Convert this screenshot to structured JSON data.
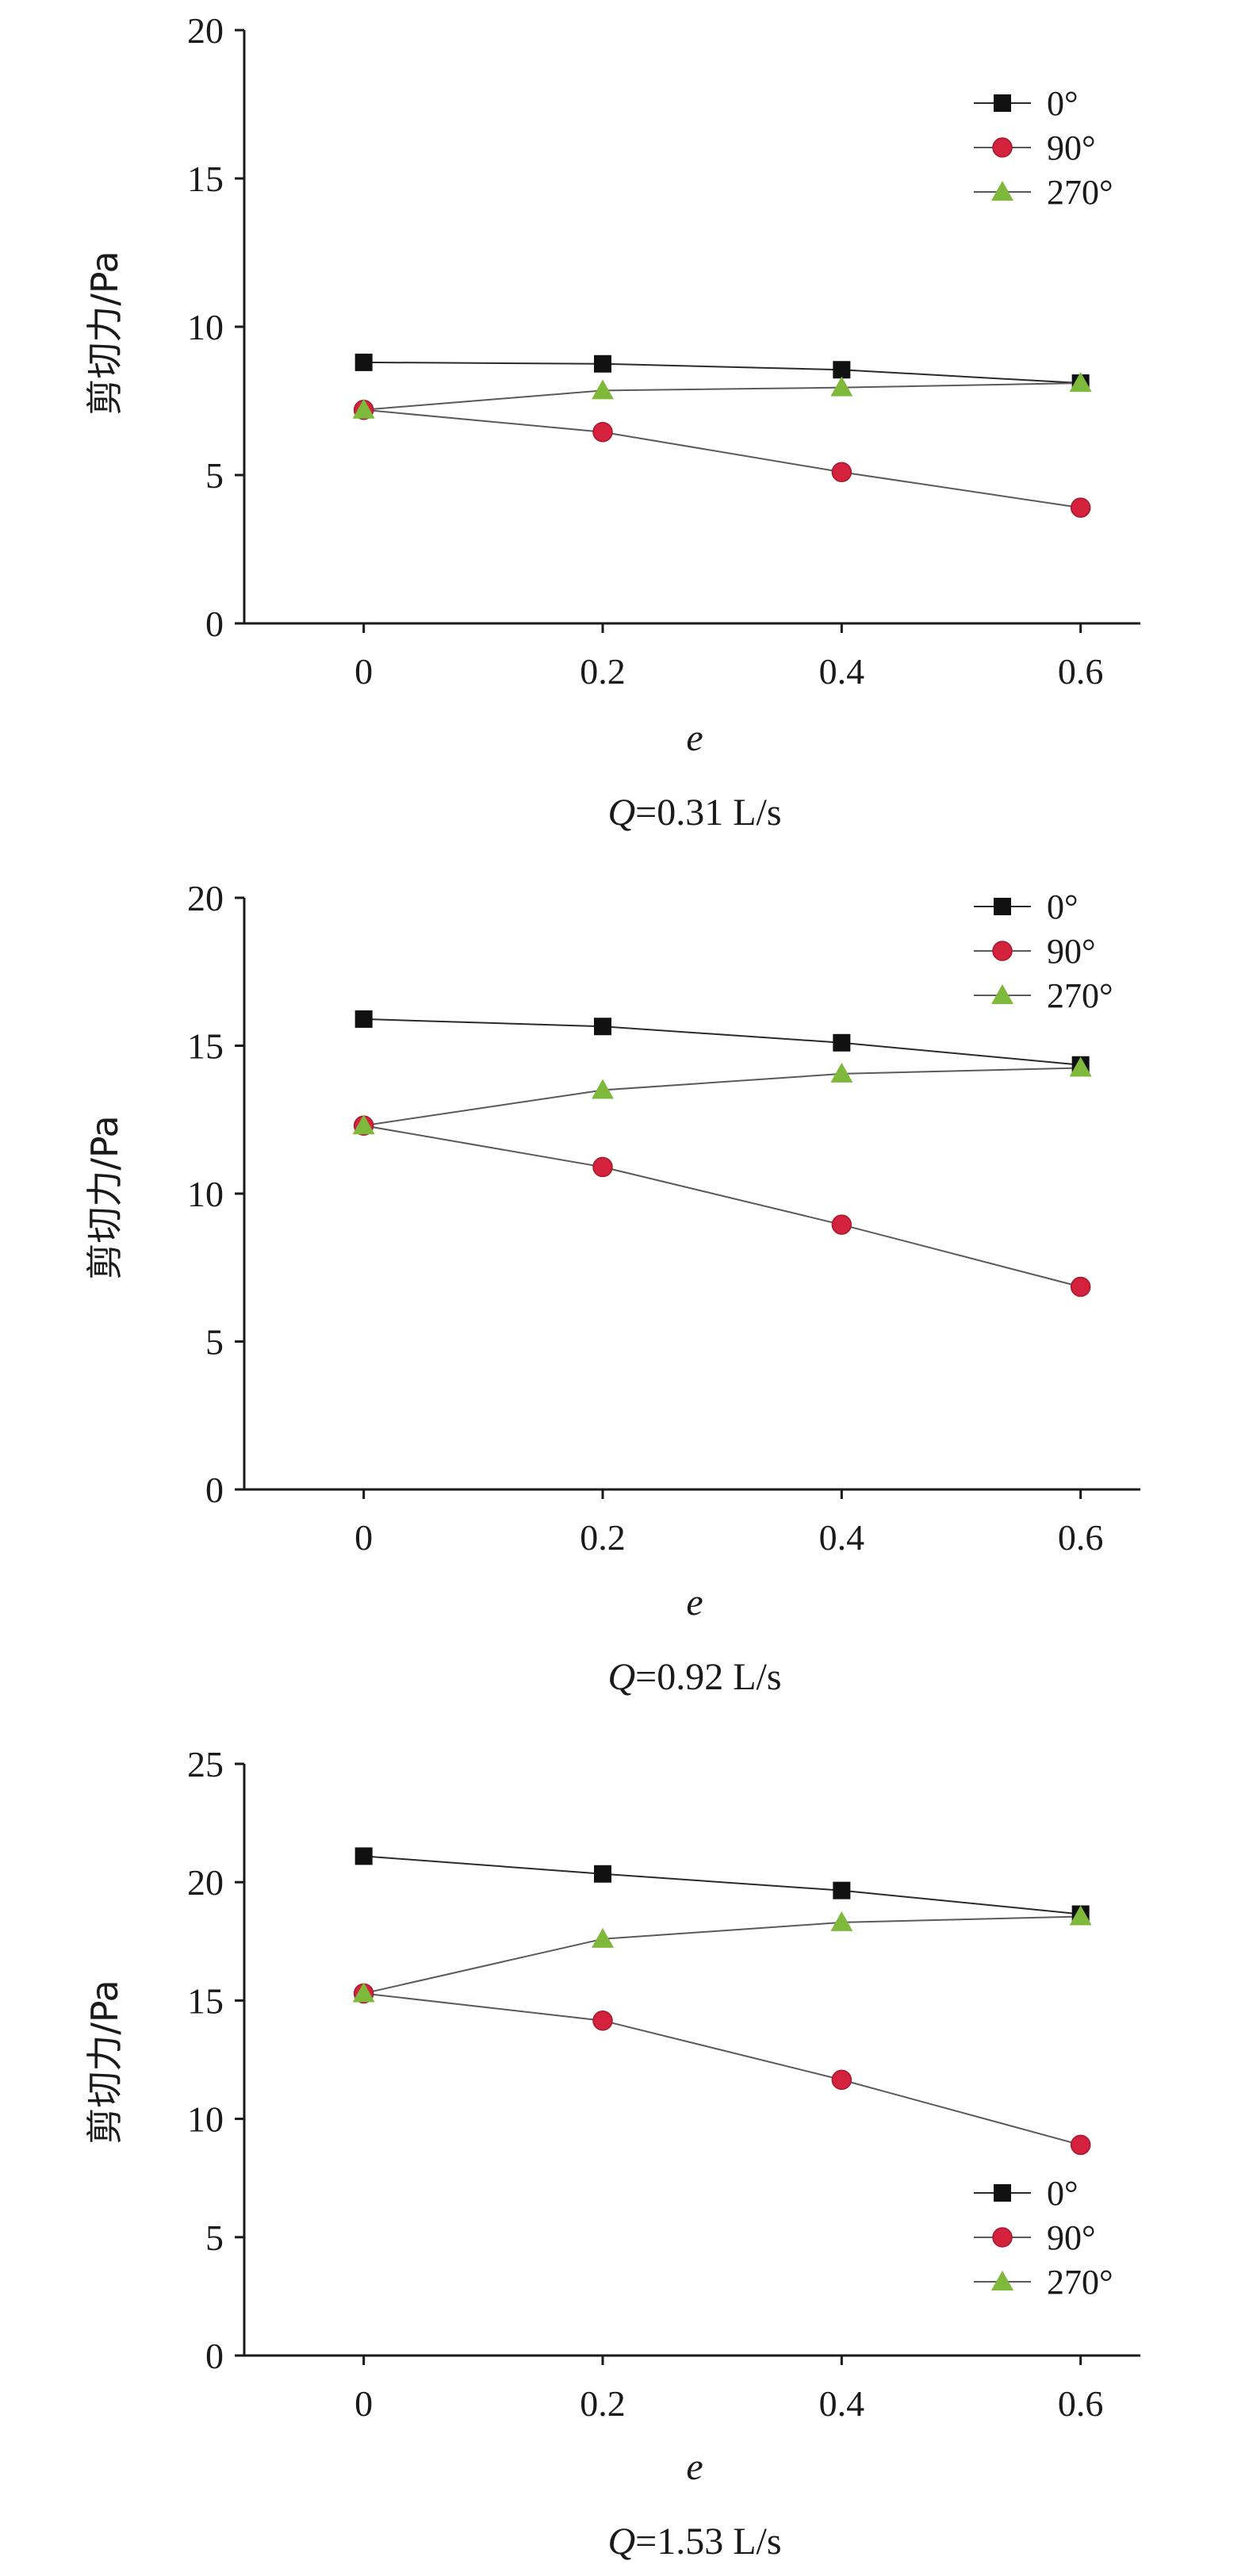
{
  "chart_data": [
    {
      "type": "line",
      "caption": {
        "symbol": "Q",
        "text": "=0.31 L/s"
      },
      "xlabel": "e",
      "ylabel": "剪切力/Pa",
      "x": [
        0,
        0.2,
        0.4,
        0.6
      ],
      "xticks": [
        "0",
        "0.2",
        "0.4",
        "0.6"
      ],
      "ylim": [
        0,
        20
      ],
      "yticks": [
        0,
        5,
        10,
        15,
        20
      ],
      "legend_position": "top-right",
      "series": [
        {
          "name": "0°",
          "marker": "square",
          "color": "#111111",
          "values": [
            8.8,
            8.75,
            8.55,
            8.1
          ]
        },
        {
          "name": "90°",
          "marker": "circle",
          "color": "#d4213d",
          "values": [
            7.2,
            6.45,
            5.1,
            3.9
          ]
        },
        {
          "name": "270°",
          "marker": "triangle",
          "color": "#7fb93b",
          "values": [
            7.2,
            7.85,
            7.95,
            8.1
          ]
        }
      ]
    },
    {
      "type": "line",
      "caption": {
        "symbol": "Q",
        "text": "=0.92 L/s"
      },
      "xlabel": "e",
      "ylabel": "剪切力/Pa",
      "x": [
        0,
        0.2,
        0.4,
        0.6
      ],
      "xticks": [
        "0",
        "0.2",
        "0.4",
        "0.6"
      ],
      "ylim": [
        0,
        20
      ],
      "yticks": [
        0,
        5,
        10,
        15,
        20
      ],
      "legend_position": "top-right",
      "series": [
        {
          "name": "0°",
          "marker": "square",
          "color": "#111111",
          "values": [
            15.9,
            15.65,
            15.1,
            14.35
          ]
        },
        {
          "name": "90°",
          "marker": "circle",
          "color": "#d4213d",
          "values": [
            12.3,
            10.9,
            8.95,
            6.85
          ]
        },
        {
          "name": "270°",
          "marker": "triangle",
          "color": "#7fb93b",
          "values": [
            12.3,
            13.5,
            14.05,
            14.25
          ]
        }
      ]
    },
    {
      "type": "line",
      "caption": {
        "symbol": "Q",
        "text": "=1.53 L/s"
      },
      "xlabel": "e",
      "ylabel": "剪切力/Pa",
      "x": [
        0,
        0.2,
        0.4,
        0.6
      ],
      "xticks": [
        "0",
        "0.2",
        "0.4",
        "0.6"
      ],
      "ylim": [
        0,
        25
      ],
      "yticks": [
        0,
        5,
        10,
        15,
        20,
        25
      ],
      "legend_position": "bottom-right",
      "series": [
        {
          "name": "0°",
          "marker": "square",
          "color": "#111111",
          "values": [
            21.1,
            20.35,
            19.65,
            18.65
          ]
        },
        {
          "name": "90°",
          "marker": "circle",
          "color": "#d4213d",
          "values": [
            15.3,
            14.15,
            11.65,
            8.9
          ]
        },
        {
          "name": "270°",
          "marker": "triangle",
          "color": "#7fb93b",
          "values": [
            15.3,
            17.6,
            18.3,
            18.55
          ]
        }
      ]
    }
  ]
}
